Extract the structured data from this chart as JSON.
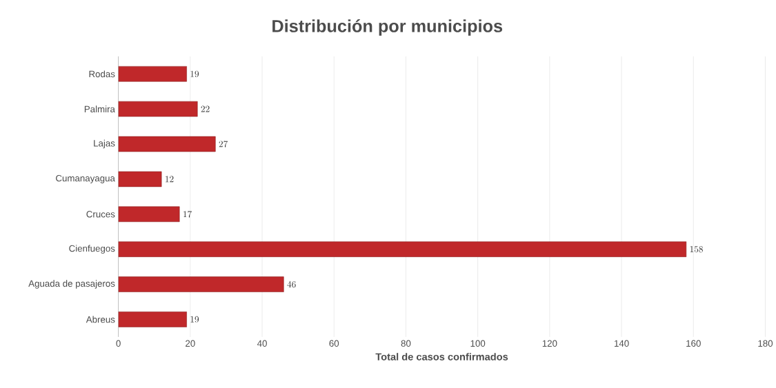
{
  "chart_data": {
    "type": "bar",
    "orientation": "horizontal",
    "title": "Distribución  por municipios",
    "xlabel": "Total de casos confirmados",
    "categories": [
      "Rodas",
      "Palmira",
      "Lajas",
      "Cumanayagua",
      "Cruces",
      "Cienfuegos",
      "Aguada de pasajeros",
      "Abreus"
    ],
    "values": [
      19,
      22,
      27,
      12,
      17,
      158,
      46,
      19
    ],
    "color": "#c0282a",
    "xlim": [
      0,
      180
    ],
    "xticks": [
      0,
      20,
      40,
      60,
      80,
      100,
      120,
      140,
      160,
      180
    ],
    "grid": "x",
    "data_labels": true
  }
}
